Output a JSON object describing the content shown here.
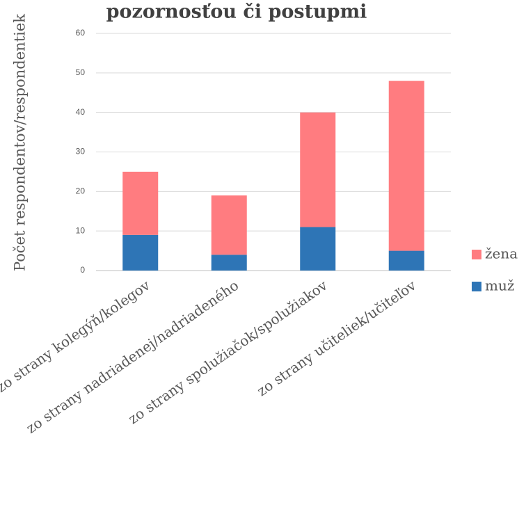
{
  "chart_data": {
    "type": "stacked_bar",
    "title": "pozornosťou či postupmi",
    "ylabel": "Počet respondentov/respondentiek",
    "categories": [
      "zo strany kolegýň/kolegov",
      "zo strany nadriadenej/nadriadeného",
      "zo strany spolužiačok/spolužiakov",
      "zo strany učiteliek/učiteľov"
    ],
    "series": [
      {
        "name": "muž",
        "color": "#2e75b6",
        "values": [
          9,
          4,
          11,
          5
        ]
      },
      {
        "name": "žena",
        "color": "#ff7c80",
        "values": [
          16,
          15,
          29,
          43
        ]
      }
    ],
    "ylim": [
      0,
      60
    ],
    "yticks": [
      0,
      10,
      20,
      30,
      40,
      50,
      60
    ],
    "grid": true,
    "legend": "right"
  }
}
